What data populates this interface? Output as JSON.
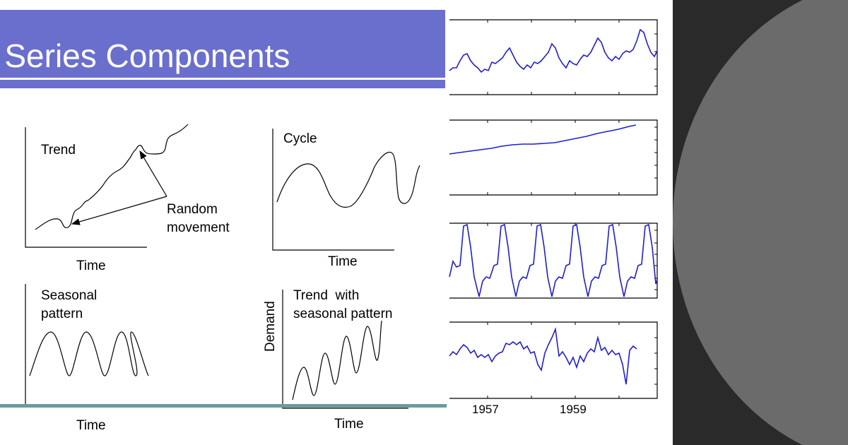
{
  "slide": {
    "title": "e Series Components",
    "colors": {
      "title_bar": "#6a6fce",
      "series_line": "#1f1fcc",
      "dark_bg": "#2a2a2a",
      "circle": "#6b6b6b",
      "footer_line": "#6d9a9a"
    }
  },
  "sketches": {
    "trend": {
      "label": "Trend",
      "note_line1": "Random",
      "note_line2": "movement",
      "xlabel": "Time"
    },
    "cycle": {
      "label": "Cycle",
      "xlabel": "Time"
    },
    "seasonal": {
      "label_line1": "Seasonal",
      "label_line2": "pattern",
      "xlabel": "Time"
    },
    "trend_seasonal": {
      "label_line1": "Trend  with",
      "label_line2": "seasonal pattern",
      "xlabel": "Time",
      "ylabel": "Demand"
    }
  },
  "decomposition": {
    "x_ticks": [
      "1957",
      "1959"
    ],
    "panels": [
      "observed",
      "trend",
      "seasonal",
      "residual"
    ]
  }
}
